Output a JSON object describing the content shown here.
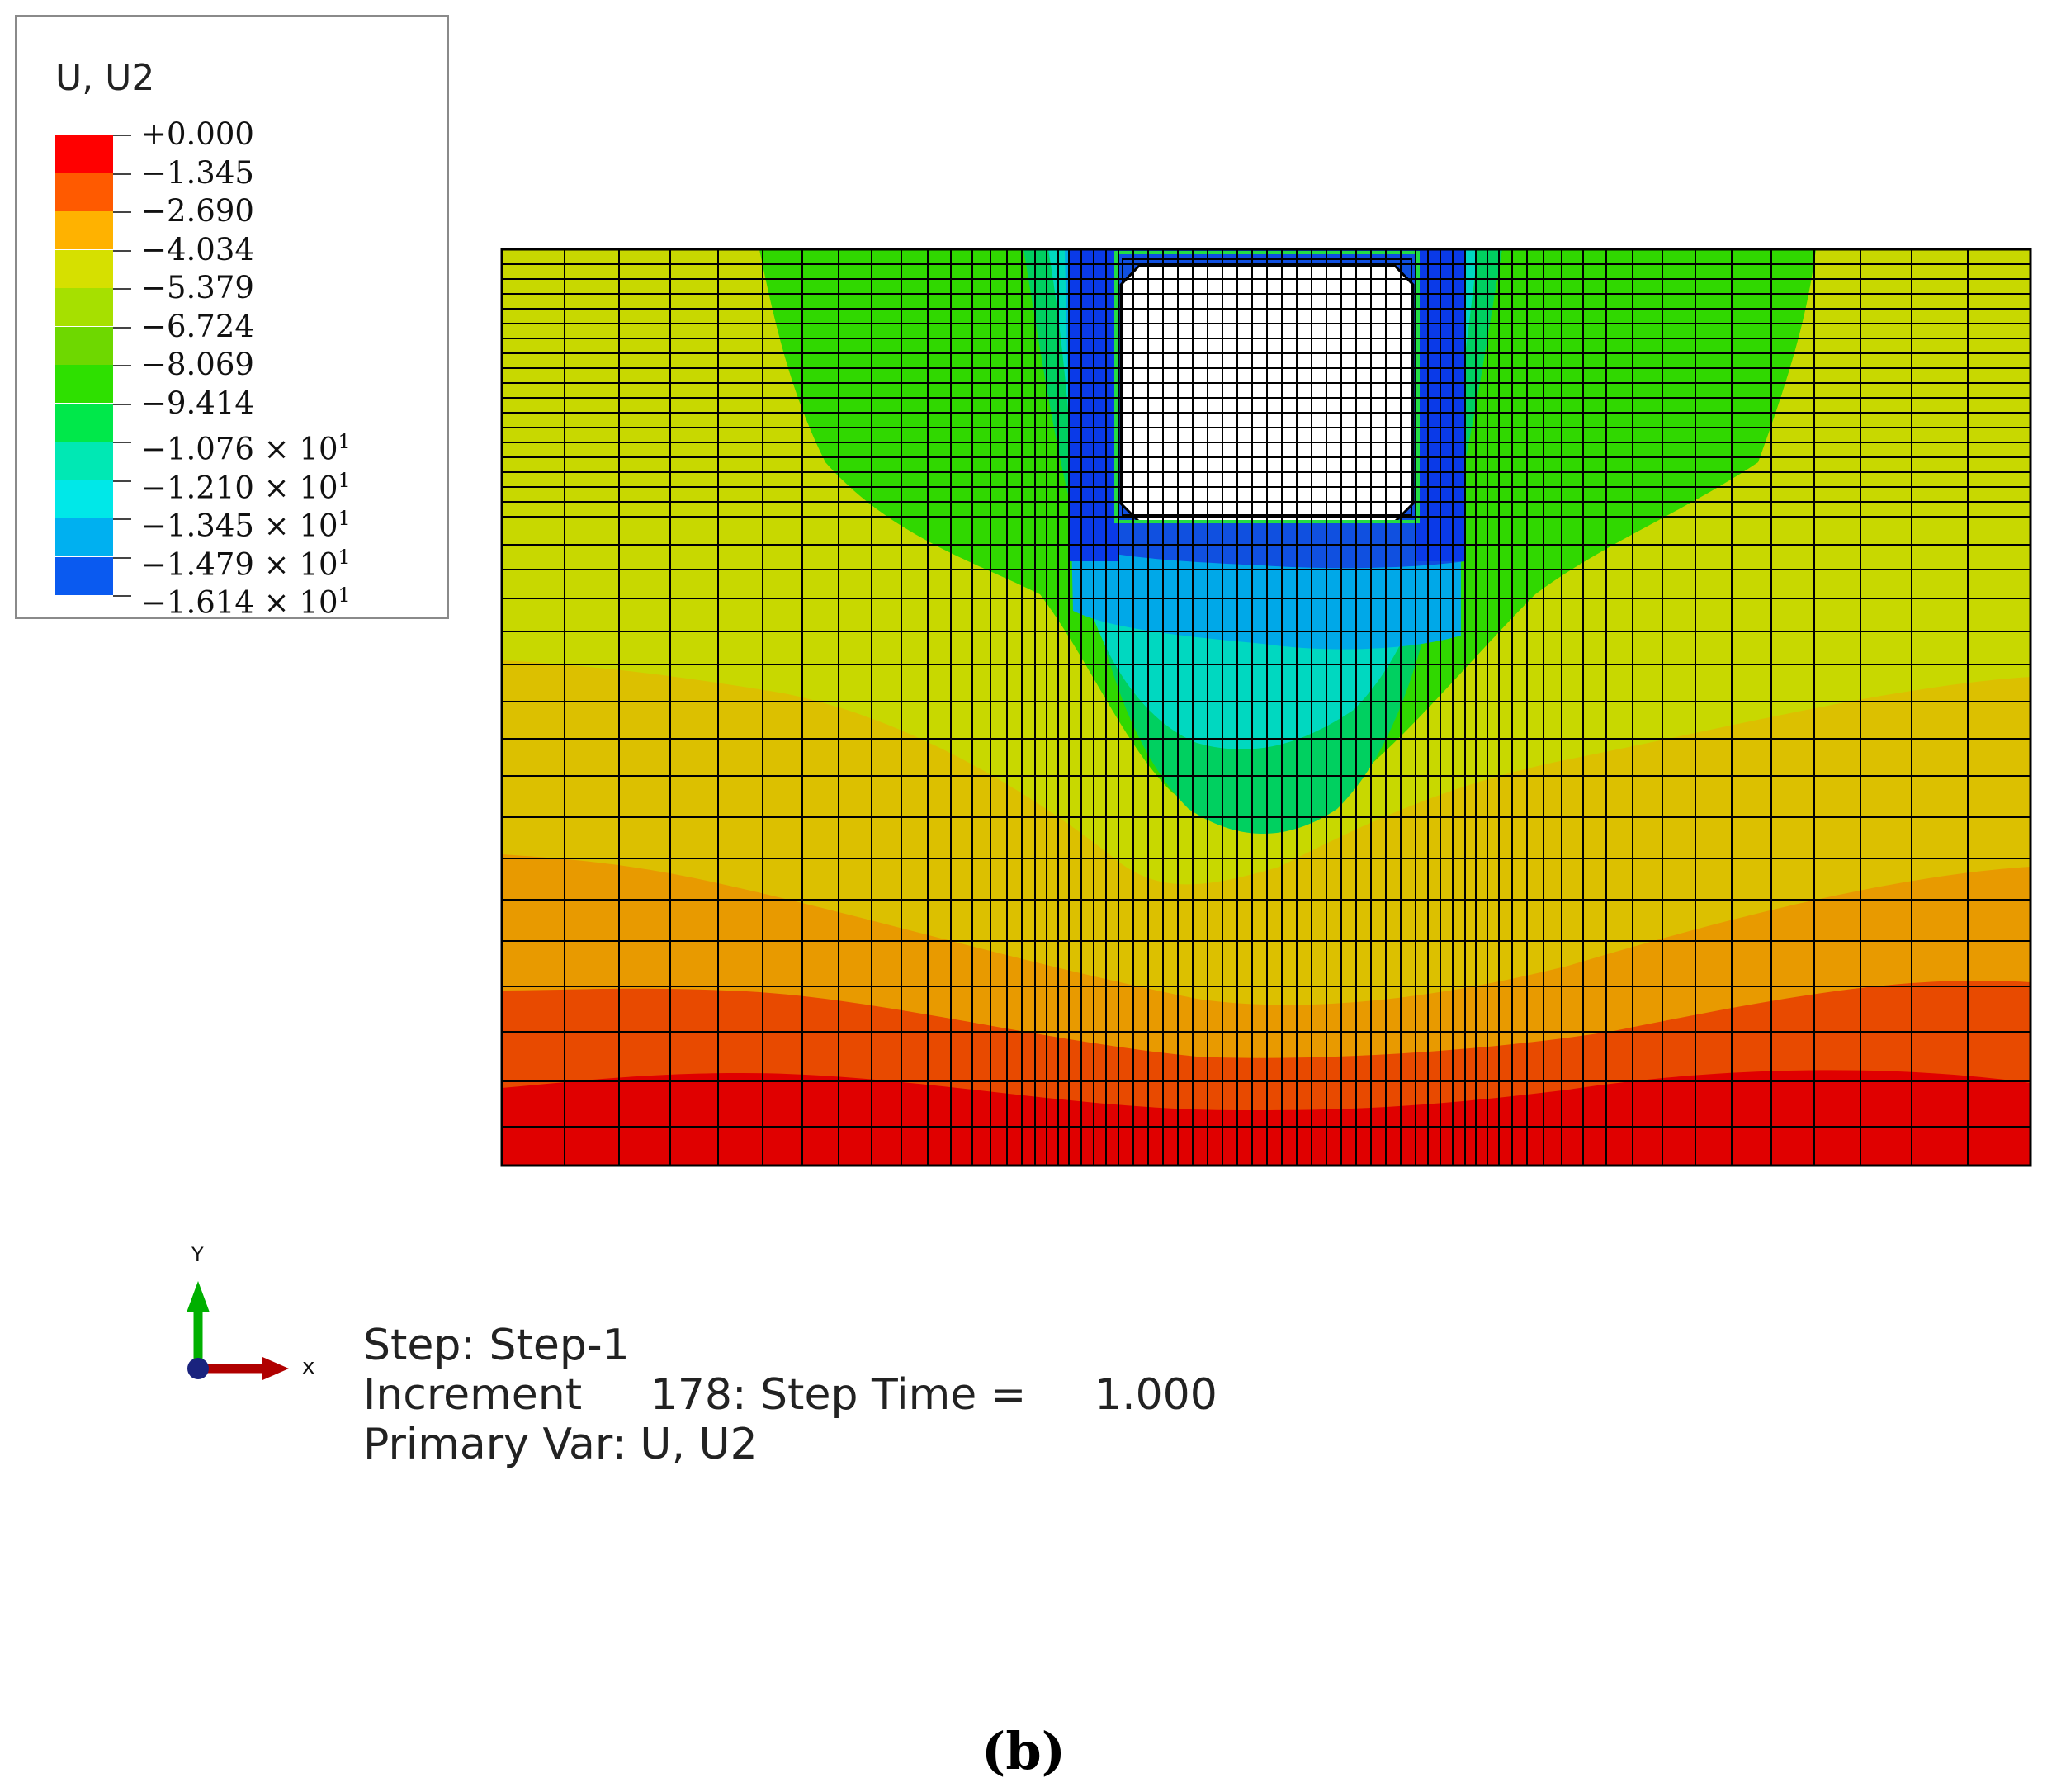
{
  "legend": {
    "title": "U, U2",
    "levels": [
      {
        "label": "+0.000",
        "exp": "",
        "color": "#ff0000"
      },
      {
        "label": "−1.345",
        "exp": "",
        "color": "#ff5a00"
      },
      {
        "label": "−2.690",
        "exp": "",
        "color": "#ffb200"
      },
      {
        "label": "−4.034",
        "exp": "",
        "color": "#d6e000"
      },
      {
        "label": "−5.379",
        "exp": "",
        "color": "#a6e000"
      },
      {
        "label": "−6.724",
        "exp": "",
        "color": "#6ed800"
      },
      {
        "label": "−8.069",
        "exp": "",
        "color": "#2ee000"
      },
      {
        "label": "−9.414",
        "exp": "",
        "color": "#00e84a"
      },
      {
        "label": "−1.076 × 10",
        "exp": "1",
        "color": "#00e8b4"
      },
      {
        "label": "−1.210 × 10",
        "exp": "1",
        "color": "#00e8e8"
      },
      {
        "label": "−1.345 × 10",
        "exp": "1",
        "color": "#00b0f0"
      },
      {
        "label": "−1.479 × 10",
        "exp": "1",
        "color": "#0a5af0"
      },
      {
        "label": "−1.614 × 10",
        "exp": "1",
        "color": "#0010e8"
      }
    ]
  },
  "model": {
    "contour_colors": {
      "red": "#e00000",
      "orange_red": "#e84a00",
      "orange": "#e89a00",
      "yellow_green": "#c8d800",
      "light_green": "#80d400",
      "green": "#30d800",
      "mid_green": "#00d060",
      "cyan": "#00d8c0",
      "light_blue": "#00a8e8",
      "blue": "#1050e0",
      "opening": "#ffffff"
    }
  },
  "axis_triad": {
    "x_label": "x",
    "y_label": "Y",
    "x_color": "#b00000",
    "y_color": "#00b000",
    "origin_color": "#1a237e"
  },
  "status": {
    "step": "Step: Step-1",
    "increment": "Increment     178: Step Time =     1.000",
    "primary_var": "Primary Var: U, U2"
  },
  "caption": "(b)"
}
